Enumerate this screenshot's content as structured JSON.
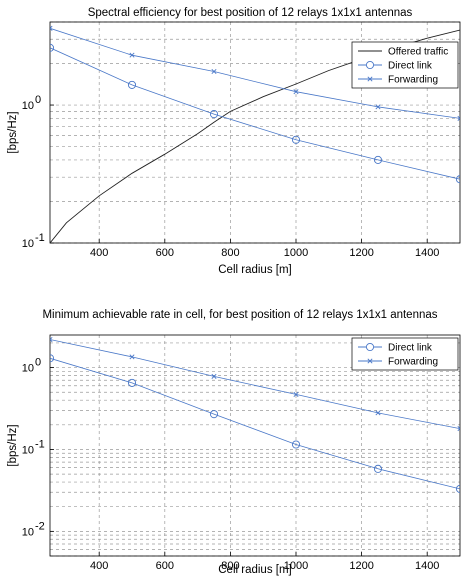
{
  "chart_data": [
    {
      "type": "line",
      "title": "Spectral efficiency for best position of 12 relays    1x1x1 antennas",
      "xlabel": "Cell radius [m]",
      "ylabel": "[bps/Hz]",
      "xlim": [
        250,
        1500
      ],
      "ylim": [
        0.1,
        4
      ],
      "yscale": "log",
      "grid": true,
      "legend_position": "top-right",
      "xticks": [
        400,
        600,
        800,
        1000,
        1200,
        1400
      ],
      "yticks": [
        {
          "value": 1,
          "base": "10",
          "exp": "0"
        },
        {
          "value": 0.1,
          "base": "10",
          "exp": "-1"
        }
      ],
      "series": [
        {
          "name": "Offered traffic",
          "color": "#222222",
          "marker": "none",
          "x": [
            250,
            300,
            400,
            500,
            600,
            700,
            750,
            800,
            900,
            1000,
            1100,
            1200,
            1300,
            1400,
            1500
          ],
          "y": [
            0.1,
            0.14,
            0.22,
            0.32,
            0.44,
            0.62,
            0.75,
            0.9,
            1.15,
            1.42,
            1.78,
            2.15,
            2.6,
            3.05,
            3.5
          ]
        },
        {
          "name": "Direct link",
          "color": "#4a78c8",
          "marker": "circle",
          "x": [
            250,
            500,
            750,
            1000,
            1250,
            1500
          ],
          "y": [
            2.6,
            1.4,
            0.86,
            0.56,
            0.4,
            0.29
          ]
        },
        {
          "name": "Forwarding",
          "color": "#4a78c8",
          "marker": "x",
          "x": [
            250,
            500,
            750,
            1000,
            1250,
            1500
          ],
          "y": [
            3.6,
            2.3,
            1.75,
            1.25,
            0.97,
            0.8
          ]
        }
      ]
    },
    {
      "type": "line",
      "title": "Minimum achievable rate in cell, for best position of 12 relays    1x1x1 antennas",
      "xlabel": "Cell radius [m]",
      "ylabel": "[bps/Hz]",
      "xlim": [
        250,
        1500
      ],
      "ylim": [
        0.005,
        2.5
      ],
      "yscale": "log",
      "grid": true,
      "legend_position": "top-right",
      "xticks": [
        400,
        600,
        800,
        1000,
        1200,
        1400
      ],
      "yticks": [
        {
          "value": 1,
          "base": "10",
          "exp": "0"
        },
        {
          "value": 0.1,
          "base": "10",
          "exp": "-1"
        },
        {
          "value": 0.01,
          "base": "10",
          "exp": "-2"
        }
      ],
      "series": [
        {
          "name": "Direct link",
          "color": "#4a78c8",
          "marker": "circle",
          "x": [
            250,
            500,
            750,
            1000,
            1250,
            1500
          ],
          "y": [
            1.3,
            0.65,
            0.27,
            0.115,
            0.058,
            0.033
          ]
        },
        {
          "name": "Forwarding",
          "color": "#4a78c8",
          "marker": "x",
          "x": [
            250,
            500,
            750,
            1000,
            1250,
            1500
          ],
          "y": [
            2.2,
            1.35,
            0.78,
            0.47,
            0.28,
            0.18
          ]
        }
      ]
    }
  ]
}
